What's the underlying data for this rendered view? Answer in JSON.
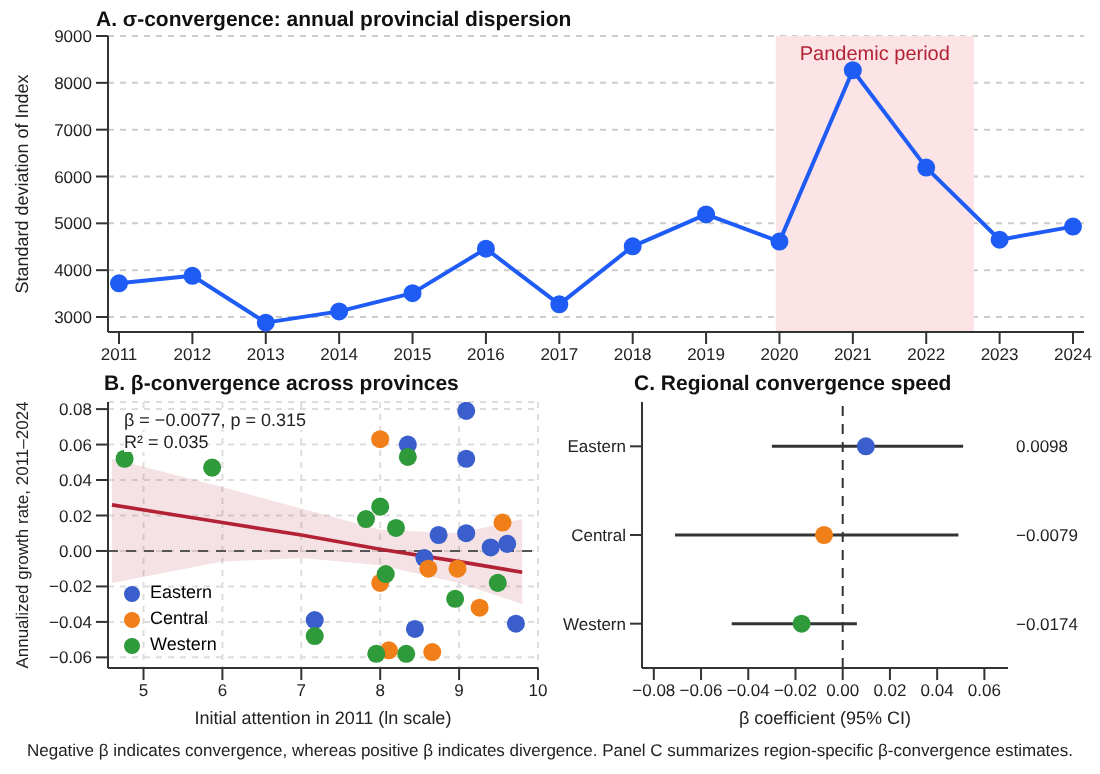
{
  "chart_data": [
    {
      "type": "line",
      "title": "A. σ-convergence: annual provincial dispersion",
      "ylabel": "Standard deviation of Index",
      "x": [
        2011,
        2012,
        2013,
        2014,
        2015,
        2016,
        2017,
        2018,
        2019,
        2020,
        2021,
        2022,
        2023,
        2024
      ],
      "series": [
        {
          "color": "#1f5cf5",
          "values": [
            3720,
            3880,
            2880,
            3120,
            3510,
            4460,
            3270,
            4510,
            5190,
            4610,
            8270,
            6190,
            4650,
            4930
          ]
        }
      ],
      "xlim": [
        2010.85,
        2024.15
      ],
      "xticks": [
        2011,
        2012,
        2013,
        2014,
        2015,
        2016,
        2017,
        2018,
        2019,
        2020,
        2021,
        2022,
        2023,
        2024
      ],
      "ylim": [
        2680,
        9000
      ],
      "yticks": [
        3000,
        4000,
        5000,
        6000,
        7000,
        8000,
        9000
      ],
      "bands": [
        {
          "axis": "x",
          "from": 2019.95,
          "to": 2022.65,
          "label": "Pandemic period",
          "color": "#fbe3e6"
        }
      ],
      "grid": "y",
      "marker": "circle",
      "line_style": "solid"
    },
    {
      "type": "scatter",
      "title": "B. β-convergence across provinces",
      "xlabel": "Initial attention in 2011 (ln scale)",
      "ylabel": "Annualized growth rate, 2011–2024",
      "annotations": [
        "β = −0.0077, p = 0.315",
        "R² = 0.035"
      ],
      "series": [
        {
          "name": "Eastern",
          "color": "#3a5fcd",
          "x": [
            9.09,
            8.35,
            9.09,
            8.74,
            9.09,
            9.4,
            9.61,
            8.56,
            9.72,
            7.17,
            8.44
          ],
          "values": [
            0.079,
            0.06,
            0.052,
            0.009,
            0.01,
            0.002,
            0.004,
            -0.004,
            -0.041,
            -0.039,
            -0.044
          ]
        },
        {
          "name": "Central",
          "color": "#f07f1a",
          "x": [
            8.0,
            9.55,
            8.61,
            8.98,
            8.0,
            9.26,
            8.11,
            8.66
          ],
          "values": [
            0.063,
            0.016,
            -0.01,
            -0.01,
            -0.018,
            -0.032,
            -0.056,
            -0.057
          ]
        },
        {
          "name": "Western",
          "color": "#2e9a3a",
          "x": [
            4.76,
            5.87,
            8.35,
            8.0,
            7.82,
            8.2,
            8.07,
            9.49,
            8.95,
            7.17,
            7.95,
            8.33
          ],
          "values": [
            0.052,
            0.047,
            0.053,
            0.025,
            0.018,
            0.013,
            -0.013,
            -0.018,
            -0.027,
            -0.048,
            -0.058,
            -0.058
          ]
        },
        {
          "type": "line",
          "marker": "none",
          "color": "#b22234",
          "x": [
            4.6,
            6,
            7,
            8,
            9,
            9.8
          ],
          "values": [
            0.026,
            0.016,
            0.009,
            0.001,
            -0.006,
            -0.012
          ],
          "lower": [
            -0.018,
            -0.006,
            -0.004,
            -0.008,
            -0.018,
            -0.03
          ],
          "upper": [
            0.052,
            0.036,
            0.024,
            0.012,
            0.01,
            0.018
          ]
        }
      ],
      "xlim": [
        4.55,
        10.0
      ],
      "xticks": [
        5,
        6,
        7,
        8,
        9,
        10
      ],
      "ylim": [
        -0.066,
        0.084
      ],
      "yticks": [
        {
          "value": -0.06,
          "label": "−0.06"
        },
        {
          "value": -0.04,
          "label": "−0.04"
        },
        {
          "value": -0.02,
          "label": "−0.02"
        },
        {
          "value": 0,
          "label": "0.00"
        },
        0.02,
        0.04,
        0.06,
        0.08
      ],
      "ref_lines": [
        {
          "axis": "y",
          "value": 0,
          "line_style": "dashed",
          "color": "#555555"
        }
      ],
      "grid": true,
      "legend": "bottom left",
      "marker": "circle"
    },
    {
      "type": "scatter",
      "orientation": "horizontal",
      "title": "C. Regional convergence speed",
      "xlabel": "β coefficient (95% CI)",
      "categories": [
        "Eastern",
        "Central",
        "Western"
      ],
      "values": [
        0.0098,
        -0.0079,
        -0.0174
      ],
      "colors": [
        "#3a5fcd",
        "#f07f1a",
        "#2e9a3a"
      ],
      "errors": [
        [
          -0.03,
          0.051
        ],
        [
          -0.071,
          0.049
        ],
        [
          -0.047,
          0.006
        ]
      ],
      "xlim": [
        -0.085,
        0.07
      ],
      "xticks": [
        {
          "value": -0.08,
          "label": "−0.08"
        },
        {
          "value": -0.06,
          "label": "−0.06"
        },
        {
          "value": -0.04,
          "label": "−0.04"
        },
        {
          "value": -0.02,
          "label": "−0.02"
        },
        {
          "value": 0,
          "label": "0.00"
        },
        0.02,
        0.04,
        0.06
      ],
      "ref_lines": [
        {
          "axis": "x",
          "value": 0,
          "line_style": "dashed",
          "color": "#333333"
        }
      ],
      "annotations": [
        "0.0098",
        "−0.0079",
        "−0.0174",
        "Negative β indicates convergence, whereas positive β indicates divergence. Panel C summarizes region-specific β-convergence estimates."
      ]
    }
  ]
}
